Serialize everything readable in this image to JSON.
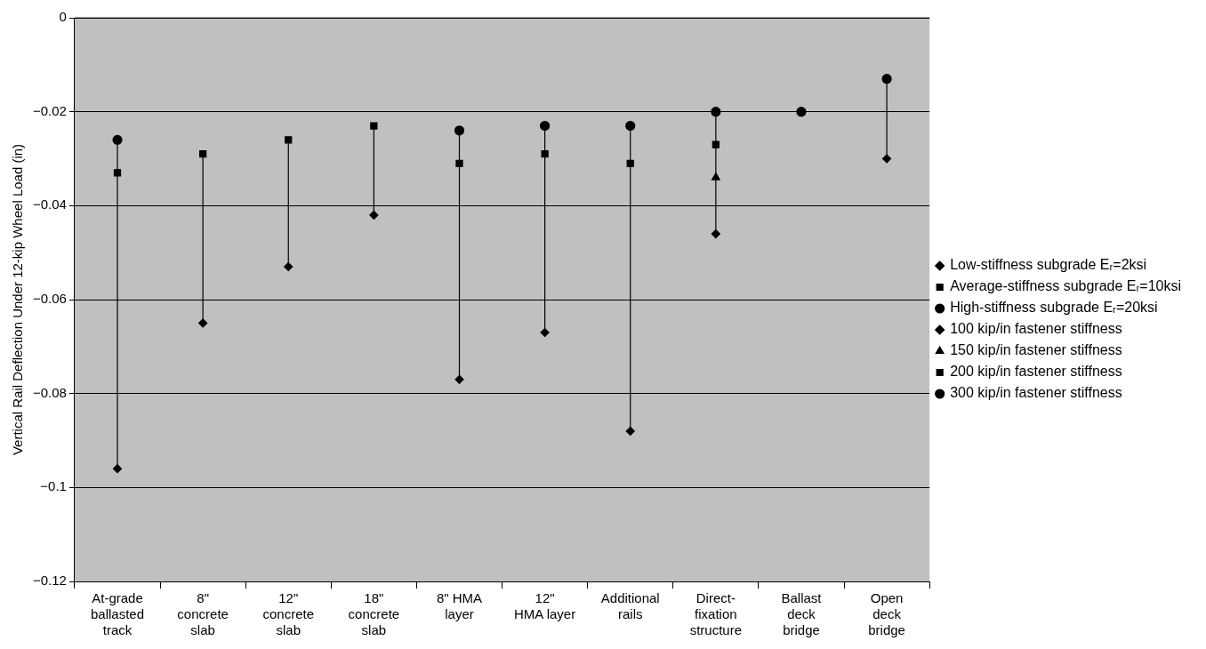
{
  "chart_data": {
    "type": "scatter",
    "ylabel": "Vertical Rail Deflection Under 12-kip Wheel Load (in)",
    "categories": [
      "At-grade\nballasted\ntrack",
      "8\"\nconcrete\nslab",
      "12\"\nconcrete\nslab",
      "18\"\nconcrete\nslab",
      "8\" HMA\nlayer",
      "12\"\nHMA layer",
      "Additional\nrails",
      "Direct-\nfixation\nstructure",
      "Ballast\ndeck\nbridge",
      "Open\ndeck\nbridge"
    ],
    "series": [
      {
        "name": "Low-stiffness subgrade Eᵣ=2ksi",
        "color": "#000000",
        "marker": "diamond",
        "values": [
          -0.096,
          -0.065,
          -0.053,
          -0.042,
          -0.077,
          -0.067,
          -0.088,
          null,
          null,
          null
        ]
      },
      {
        "name": "Average-stiffness subgrade Eᵣ=10ksi",
        "color": "#000000",
        "marker": "square",
        "values": [
          -0.033,
          -0.029,
          -0.026,
          -0.023,
          -0.031,
          -0.029,
          -0.031,
          null,
          null,
          null
        ]
      },
      {
        "name": "High-stiffness subgrade Eᵣ=20ksi",
        "color": "#000000",
        "marker": "circle",
        "values": [
          -0.026,
          null,
          null,
          null,
          -0.024,
          -0.023,
          -0.023,
          null,
          null,
          null
        ]
      },
      {
        "name": "100 kip/in fastener stiffness",
        "color": "#000000",
        "marker": "diamond",
        "values": [
          null,
          null,
          null,
          null,
          null,
          null,
          null,
          -0.046,
          null,
          -0.03
        ]
      },
      {
        "name": "150 kip/in fastener stiffness",
        "color": "#000000",
        "marker": "triangle",
        "values": [
          null,
          null,
          null,
          null,
          null,
          null,
          null,
          -0.034,
          null,
          null
        ]
      },
      {
        "name": "200 kip/in fastener stiffness",
        "color": "#000000",
        "marker": "square",
        "values": [
          null,
          null,
          null,
          null,
          null,
          null,
          null,
          -0.027,
          null,
          null
        ]
      },
      {
        "name": "300 kip/in fastener stiffness",
        "color": "#000000",
        "marker": "circle",
        "values": [
          null,
          null,
          null,
          null,
          null,
          null,
          null,
          -0.02,
          -0.02,
          -0.013
        ]
      }
    ],
    "ylim": [
      -0.12,
      0
    ],
    "yticks": [
      {
        "value": -0.12,
        "label": "−0.12"
      },
      {
        "value": -0.1,
        "label": "−0.1"
      },
      {
        "value": -0.08,
        "label": "−0.08"
      },
      {
        "value": -0.06,
        "label": "−0.06"
      },
      {
        "value": -0.04,
        "label": "−0.04"
      },
      {
        "value": -0.02,
        "label": "−0.02"
      },
      0
    ],
    "grid": "y",
    "legend": "right"
  }
}
